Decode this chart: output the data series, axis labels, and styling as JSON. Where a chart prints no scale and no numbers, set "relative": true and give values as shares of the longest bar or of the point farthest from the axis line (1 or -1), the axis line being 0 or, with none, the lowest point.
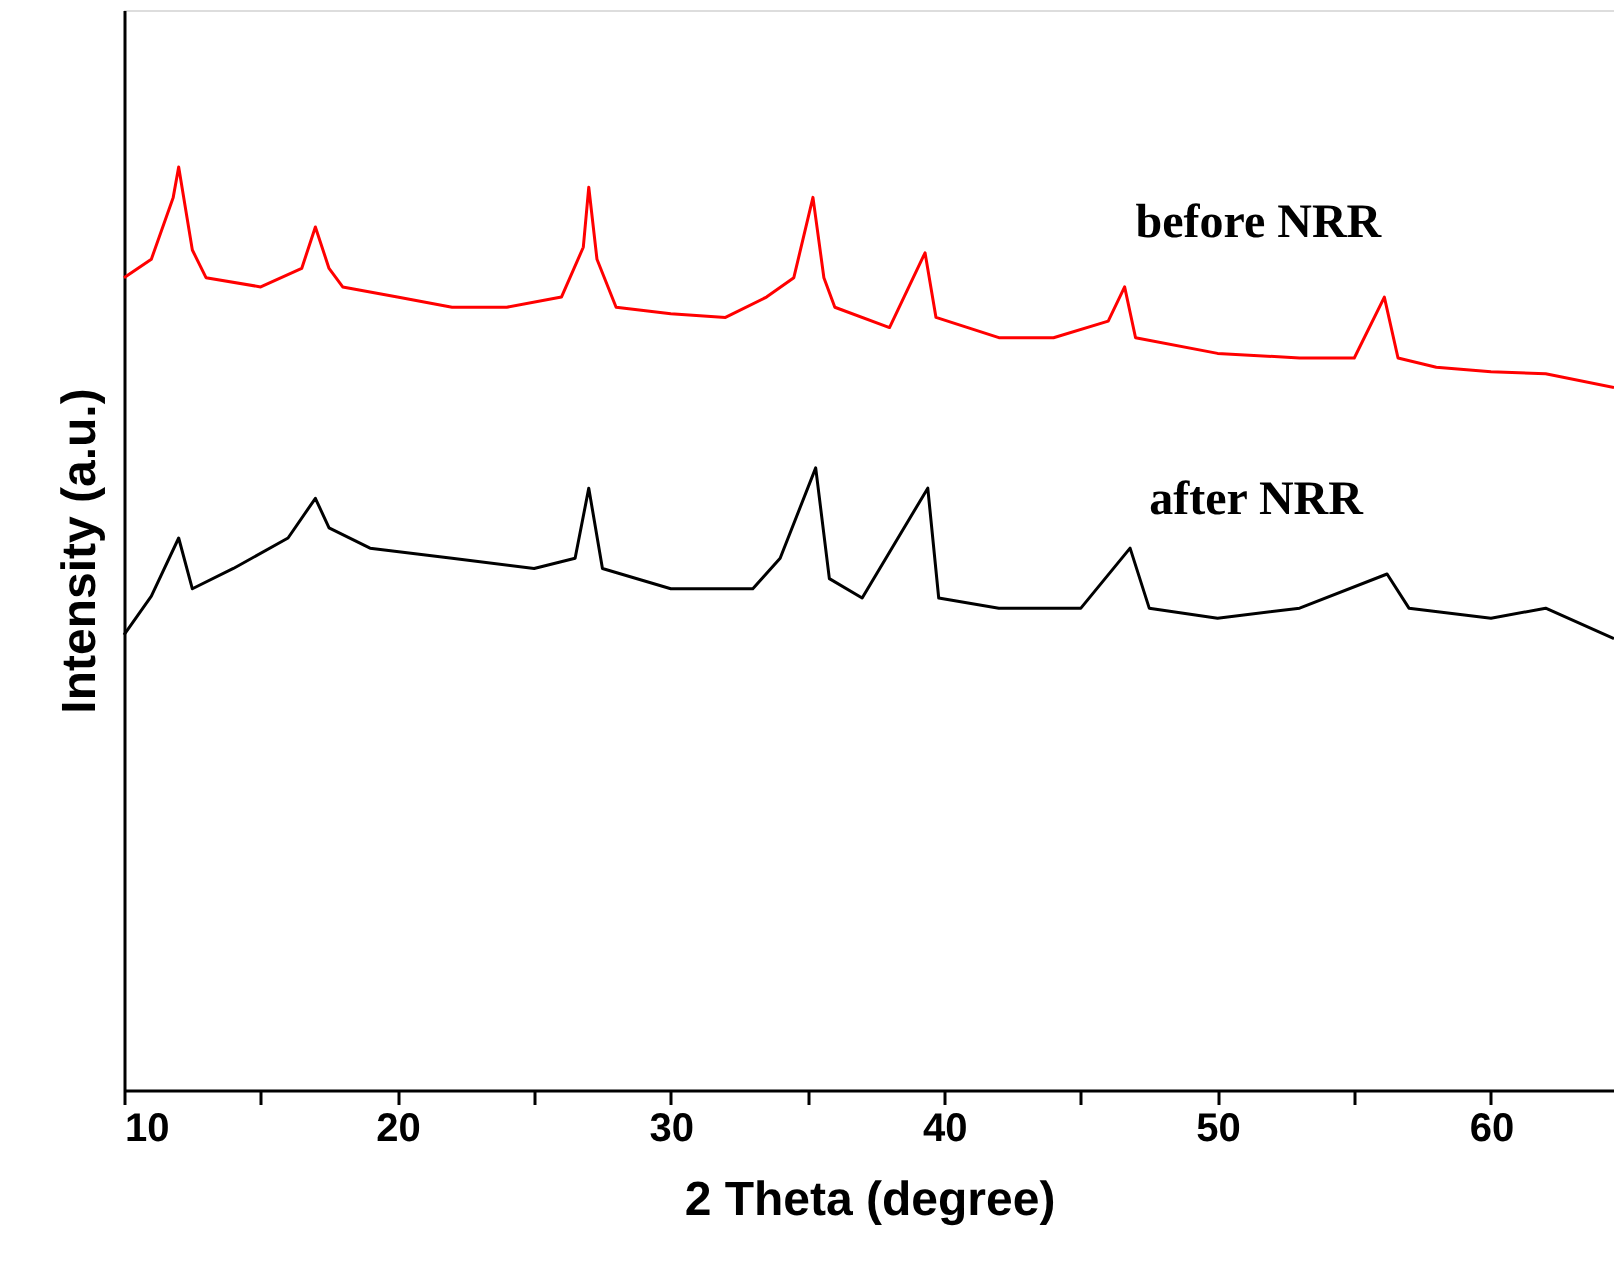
{
  "chart_data": {
    "type": "line",
    "relative": true,
    "xlabel": "2 Theta (degree)",
    "ylabel": "Intensity (a.u.)",
    "xlim": [
      10,
      64.5
    ],
    "xticks": [
      10,
      {
        "value": 15,
        "label": null
      },
      20,
      {
        "value": 25,
        "label": null
      },
      30,
      {
        "value": 35,
        "label": null
      },
      40,
      {
        "value": 45,
        "label": null
      },
      50,
      {
        "value": 55,
        "label": null
      },
      60
    ],
    "grid": false,
    "marker": "none",
    "line_style": "solid",
    "series": [
      {
        "name": "before NRR",
        "color": "#ff0000",
        "x": [
          10,
          11,
          11.8,
          12,
          12.5,
          13,
          15,
          16.5,
          17,
          17.5,
          18,
          20,
          22,
          24,
          26,
          26.8,
          27,
          27.3,
          28,
          30,
          32,
          33.5,
          34.5,
          35.2,
          35.6,
          36,
          38,
          39.3,
          39.7,
          42,
          44,
          46,
          46.6,
          47,
          50,
          53,
          55,
          56.1,
          56.6,
          58,
          60,
          62,
          64.5
        ],
        "values": [
          0.88,
          0.9,
          0.967,
          1.0,
          0.91,
          0.88,
          0.87,
          0.89,
          0.935,
          0.89,
          0.87,
          0.859,
          0.848,
          0.848,
          0.859,
          0.913,
          0.978,
          0.9,
          0.848,
          0.841,
          0.837,
          0.859,
          0.88,
          0.967,
          0.88,
          0.848,
          0.826,
          0.907,
          0.837,
          0.815,
          0.815,
          0.833,
          0.87,
          0.815,
          0.798,
          0.793,
          0.793,
          0.859,
          0.793,
          0.783,
          0.778,
          0.776,
          0.761
        ]
      },
      {
        "name": "after NRR",
        "color": "#000000",
        "x": [
          10,
          11,
          12,
          12.5,
          14,
          16,
          17,
          17.5,
          19,
          22,
          25,
          26.5,
          27,
          27.5,
          30,
          33,
          34,
          35.3,
          35.8,
          37,
          39.4,
          39.8,
          42,
          45,
          46.8,
          47.5,
          50,
          53,
          56.2,
          57,
          60,
          62,
          64.5
        ],
        "values": [
          0.493,
          0.535,
          0.598,
          0.543,
          0.565,
          0.598,
          0.641,
          0.609,
          0.587,
          0.576,
          0.565,
          0.576,
          0.652,
          0.565,
          0.543,
          0.543,
          0.576,
          0.674,
          0.554,
          0.533,
          0.652,
          0.533,
          0.522,
          0.522,
          0.587,
          0.522,
          0.511,
          0.522,
          0.559,
          0.522,
          0.511,
          0.522,
          0.489
        ]
      }
    ]
  }
}
